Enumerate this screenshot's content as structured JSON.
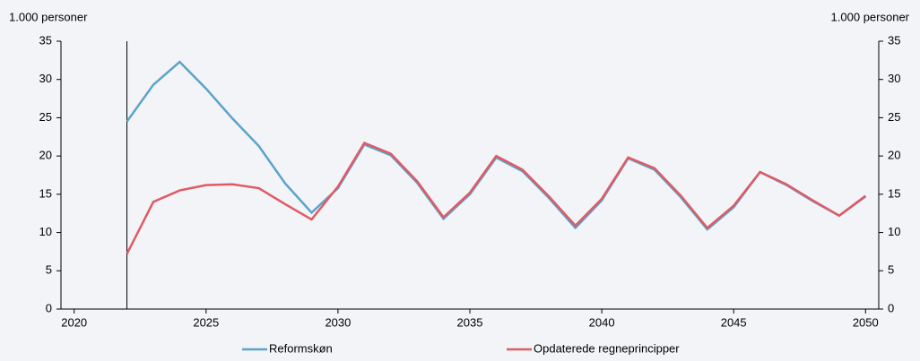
{
  "chart_data": {
    "type": "line",
    "ylabel": "1.000 personer",
    "y2label": "1.000 personer",
    "x": [
      2022,
      2023,
      2024,
      2025,
      2026,
      2027,
      2028,
      2029,
      2030,
      2031,
      2032,
      2033,
      2034,
      2035,
      2036,
      2037,
      2038,
      2039,
      2040,
      2041,
      2042,
      2043,
      2044,
      2045,
      2046,
      2047,
      2048,
      2049,
      2050
    ],
    "series": [
      {
        "name": "Reformskøn",
        "color": "#5ba3c9",
        "values": [
          24.5,
          29.3,
          32.3,
          28.8,
          24.9,
          21.3,
          16.4,
          12.6,
          15.8,
          21.5,
          20.1,
          16.5,
          11.8,
          15.0,
          19.8,
          18.0,
          14.5,
          10.6,
          14.2,
          19.7,
          18.2,
          14.6,
          10.4,
          13.3,
          17.9,
          16.2,
          14.1,
          12.2,
          14.7
        ]
      },
      {
        "name": "Opdaterede regneprincipper",
        "color": "#e05a64",
        "values": [
          7.2,
          14.0,
          15.5,
          16.2,
          16.3,
          15.8,
          13.7,
          11.7,
          16.0,
          21.7,
          20.3,
          16.7,
          12.0,
          15.2,
          20.0,
          18.2,
          14.7,
          10.9,
          14.4,
          19.8,
          18.4,
          14.8,
          10.6,
          13.5,
          17.9,
          16.3,
          14.2,
          12.2,
          14.8
        ]
      }
    ],
    "vline": 2022,
    "xlim": [
      2019.5,
      2050.5
    ],
    "xticks": [
      2020,
      2025,
      2030,
      2035,
      2040,
      2045,
      2050
    ],
    "ylim": [
      0,
      35
    ],
    "yticks": [
      0,
      5,
      10,
      15,
      20,
      25,
      30,
      35
    ],
    "y2lim": [
      0,
      35
    ],
    "y2ticks": [
      0,
      5,
      10,
      15,
      20,
      25,
      30,
      35
    ]
  }
}
